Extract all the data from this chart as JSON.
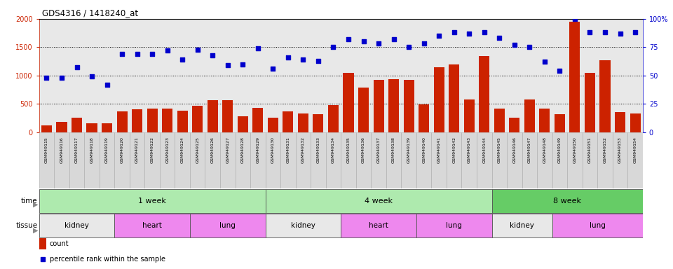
{
  "title": "GDS4316 / 1418240_at",
  "samples": [
    "GSM949115",
    "GSM949116",
    "GSM949117",
    "GSM949118",
    "GSM949119",
    "GSM949120",
    "GSM949121",
    "GSM949122",
    "GSM949123",
    "GSM949124",
    "GSM949125",
    "GSM949126",
    "GSM949127",
    "GSM949128",
    "GSM949129",
    "GSM949130",
    "GSM949131",
    "GSM949132",
    "GSM949133",
    "GSM949134",
    "GSM949135",
    "GSM949136",
    "GSM949137",
    "GSM949138",
    "GSM949139",
    "GSM949140",
    "GSM949141",
    "GSM949142",
    "GSM949143",
    "GSM949144",
    "GSM949145",
    "GSM949146",
    "GSM949147",
    "GSM949148",
    "GSM949149",
    "GSM949150",
    "GSM949151",
    "GSM949152",
    "GSM949153",
    "GSM949154"
  ],
  "counts": [
    120,
    180,
    250,
    150,
    160,
    370,
    400,
    420,
    410,
    380,
    470,
    560,
    560,
    280,
    430,
    250,
    370,
    330,
    320,
    480,
    1040,
    790,
    920,
    940,
    920,
    490,
    1140,
    1190,
    570,
    1340,
    420,
    260,
    570,
    410,
    310,
    1950,
    1050,
    1270,
    350,
    330
  ],
  "percentile": [
    48,
    48,
    57,
    49,
    42,
    69,
    69,
    69,
    72,
    64,
    73,
    68,
    59,
    60,
    74,
    56,
    66,
    64,
    63,
    75,
    82,
    80,
    78,
    82,
    75,
    78,
    85,
    88,
    87,
    88,
    83,
    77,
    75,
    62,
    54,
    100,
    88,
    88,
    87,
    88
  ],
  "bar_color": "#cc2200",
  "dot_color": "#0000cc",
  "ylim_left": [
    0,
    2000
  ],
  "ylim_right": [
    0,
    100
  ],
  "yticks_left": [
    0,
    500,
    1000,
    1500,
    2000
  ],
  "yticks_right": [
    0,
    25,
    50,
    75,
    100
  ],
  "hgrid_values": [
    500,
    1000,
    1500
  ],
  "time_groups": [
    {
      "label": "1 week",
      "start": 0,
      "end": 14,
      "color": "#aeeaae"
    },
    {
      "label": "4 week",
      "start": 15,
      "end": 29,
      "color": "#aeeaae"
    },
    {
      "label": "8 week",
      "start": 30,
      "end": 39,
      "color": "#66cc66"
    }
  ],
  "tissue_groups": [
    {
      "label": "kidney",
      "start": 0,
      "end": 4,
      "color": "#e8e8e8"
    },
    {
      "label": "heart",
      "start": 5,
      "end": 9,
      "color": "#ee88ee"
    },
    {
      "label": "lung",
      "start": 10,
      "end": 14,
      "color": "#ee88ee"
    },
    {
      "label": "kidney",
      "start": 15,
      "end": 19,
      "color": "#e8e8e8"
    },
    {
      "label": "heart",
      "start": 20,
      "end": 24,
      "color": "#ee88ee"
    },
    {
      "label": "lung",
      "start": 25,
      "end": 29,
      "color": "#ee88ee"
    },
    {
      "label": "kidney",
      "start": 30,
      "end": 33,
      "color": "#e8e8e8"
    },
    {
      "label": "lung",
      "start": 34,
      "end": 39,
      "color": "#ee88ee"
    }
  ],
  "bg_color": "#ffffff",
  "plot_bg_color": "#e8e8e8",
  "label_bg_color": "#d8d8d8"
}
